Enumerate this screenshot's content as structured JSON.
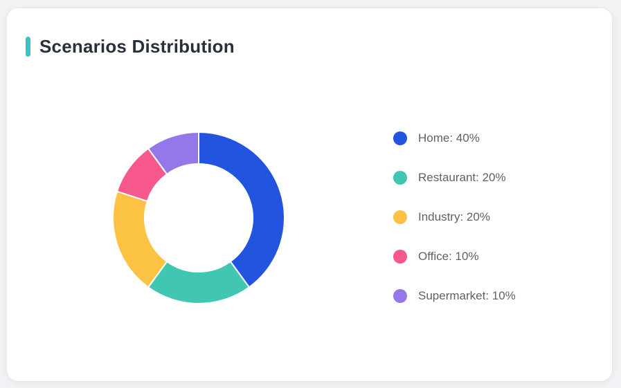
{
  "page": {
    "background_color": "#f1f2f4"
  },
  "card": {
    "title": "Scenarios Distribution",
    "accent_color": "#3ec4be"
  },
  "chart_data": {
    "type": "pie",
    "subtype": "donut",
    "title": "Scenarios Distribution",
    "categories": [
      "Home",
      "Restaurant",
      "Industry",
      "Office",
      "Supermarket"
    ],
    "values": [
      40,
      20,
      20,
      10,
      10
    ],
    "unit": "%",
    "colors": [
      "#2254e0",
      "#41c6b4",
      "#fbc244",
      "#f6578c",
      "#9477e8"
    ],
    "start_angle_deg": -90,
    "direction": "clockwise",
    "inner_radius_ratio": 0.63,
    "segment_gap_color": "#ffffff",
    "legend_position": "right",
    "legend_labels": [
      "Home: 40%",
      "Restaurant: 20%",
      "Industry: 20%",
      "Office: 10%",
      "Supermarket: 10%"
    ]
  }
}
